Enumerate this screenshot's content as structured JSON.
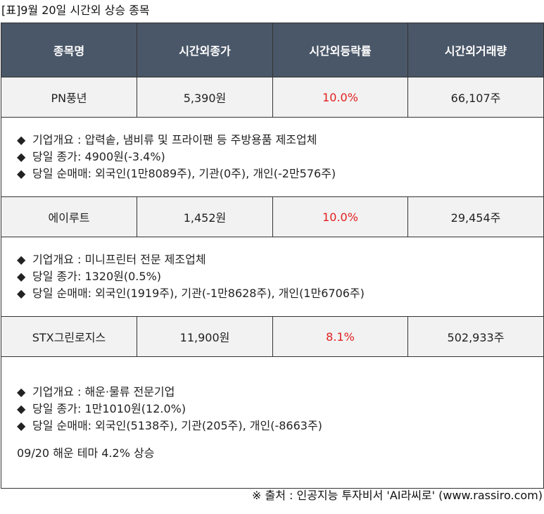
{
  "title": "[표]9월 20일 시간외 상승 종목",
  "headers": [
    "종목명",
    "시간외종가",
    "시간외등락률",
    "시간외거래량"
  ],
  "bullet_glyph": "◆",
  "stocks": [
    {
      "name": "PN풍년",
      "close": "5,390원",
      "rate": "10.0%",
      "volume": "66,107주",
      "details": [
        "기업개요 : 압력솥, 냄비류 및 프라이팬 등 주방용품 제조업체",
        "당일 종가: 4900원(-3.4%)",
        "당일 순매매: 외국인(1만8089주), 기관(0주), 개인(-2만576주)"
      ]
    },
    {
      "name": "에이루트",
      "close": "1,452원",
      "rate": "10.0%",
      "volume": "29,454주",
      "details": [
        "기업개요 : 미니프린터 전문 제조업체",
        "당일 종가: 1320원(0.5%)",
        "당일 순매매: 외국인(1919주), 기관(-1만8628주), 개인(1만6706주)"
      ]
    },
    {
      "name": "STX그린로지스",
      "close": "11,900원",
      "rate": "8.1%",
      "volume": "502,933주",
      "details": [
        "기업개요 : 해운·물류 전문기업",
        "당일 종가: 1만1010원(12.0%)",
        "당일 순매매: 외국인(5138주), 기관(205주), 개인(-8663주)"
      ],
      "note": "09/20 해운 테마 4.2% 상승"
    }
  ],
  "source": "※ 출처 : 인공지능 투자비서 'AI라씨로' (www.rassiro.com)",
  "colors": {
    "header_bg": "#4a5768",
    "header_text": "#ffffff",
    "row_bg": "#f2f2f2",
    "rate_text": "#e02020"
  }
}
